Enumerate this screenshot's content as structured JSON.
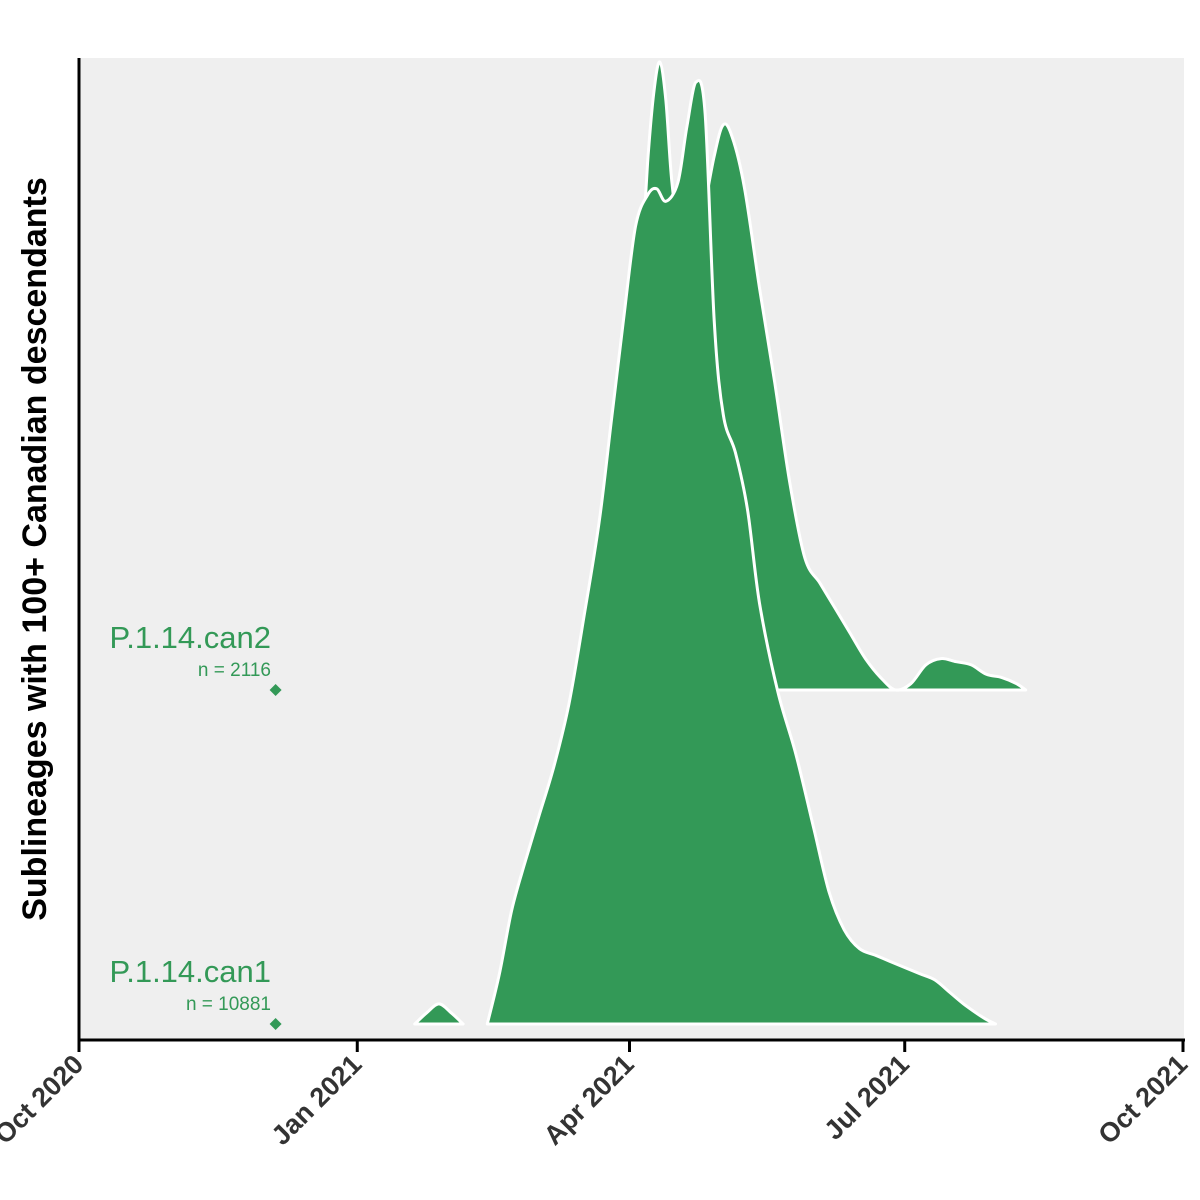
{
  "chart_data": {
    "type": "area",
    "subtype": "ridgeline",
    "title": "",
    "xlabel": "",
    "ylabel": "Sublineages with 100+ Canadian descendants",
    "x_axis": {
      "type": "date",
      "range": [
        "2020-10-01",
        "2021-10-01"
      ],
      "ticks": [
        {
          "date": "2020-10-01",
          "label": "Oct 2020"
        },
        {
          "date": "2021-01-01",
          "label": "Jan 2021"
        },
        {
          "date": "2021-04-01",
          "label": "Apr 2021"
        },
        {
          "date": "2021-07-01",
          "label": "Jul 2021"
        },
        {
          "date": "2021-10-01",
          "label": "Oct 2021"
        }
      ]
    },
    "grid": false,
    "background": "#efefef",
    "fill_color": "#339957",
    "outline_color": "#ffffff",
    "series": [
      {
        "name": "P.1.14.can2",
        "n_label": "n =  2116",
        "origin_date": "2020-12-05",
        "relative_density": [
          [
            "2021-03-13",
            0.0
          ],
          [
            "2021-03-18",
            0.02
          ],
          [
            "2021-03-23",
            0.07
          ],
          [
            "2021-03-28",
            0.18
          ],
          [
            "2021-04-01",
            0.34
          ],
          [
            "2021-04-03",
            0.5
          ],
          [
            "2021-04-05",
            0.68
          ],
          [
            "2021-04-07",
            0.84
          ],
          [
            "2021-04-09",
            0.95
          ],
          [
            "2021-04-11",
            1.0
          ],
          [
            "2021-04-13",
            0.94
          ],
          [
            "2021-04-15",
            0.81
          ],
          [
            "2021-04-18",
            0.7
          ],
          [
            "2021-04-21",
            0.68
          ],
          [
            "2021-04-25",
            0.75
          ],
          [
            "2021-04-29",
            0.85
          ],
          [
            "2021-05-02",
            0.9
          ],
          [
            "2021-05-05",
            0.88
          ],
          [
            "2021-05-09",
            0.8
          ],
          [
            "2021-05-14",
            0.64
          ],
          [
            "2021-05-19",
            0.49
          ],
          [
            "2021-05-24",
            0.33
          ],
          [
            "2021-05-29",
            0.21
          ],
          [
            "2021-06-03",
            0.17
          ],
          [
            "2021-06-08",
            0.13
          ],
          [
            "2021-06-13",
            0.09
          ],
          [
            "2021-06-18",
            0.05
          ],
          [
            "2021-06-23",
            0.02
          ],
          [
            "2021-06-28",
            0.0
          ],
          [
            "2021-07-03",
            0.01
          ],
          [
            "2021-07-08",
            0.04
          ],
          [
            "2021-07-13",
            0.05
          ],
          [
            "2021-07-18",
            0.045
          ],
          [
            "2021-07-23",
            0.04
          ],
          [
            "2021-07-28",
            0.025
          ],
          [
            "2021-08-02",
            0.02
          ],
          [
            "2021-08-07",
            0.01
          ],
          [
            "2021-08-10",
            0.0
          ]
        ]
      },
      {
        "name": "P.1.14.can1",
        "n_label": "n =  10881",
        "origin_date": "2020-12-05",
        "relative_density": [
          [
            "2021-01-20",
            0.0
          ],
          [
            "2021-01-24",
            0.018
          ],
          [
            "2021-01-28",
            0.032
          ],
          [
            "2021-02-01",
            0.018
          ],
          [
            "2021-02-05",
            0.0
          ],
          [
            "2021-02-13",
            0.0
          ],
          [
            "2021-02-17",
            0.08
          ],
          [
            "2021-02-21",
            0.18
          ],
          [
            "2021-02-25",
            0.25
          ],
          [
            "2021-03-02",
            0.33
          ],
          [
            "2021-03-07",
            0.41
          ],
          [
            "2021-03-12",
            0.51
          ],
          [
            "2021-03-17",
            0.65
          ],
          [
            "2021-03-22",
            0.8
          ],
          [
            "2021-03-26",
            0.96
          ],
          [
            "2021-03-30",
            1.12
          ],
          [
            "2021-04-03",
            1.27
          ],
          [
            "2021-04-07",
            1.32
          ],
          [
            "2021-04-10",
            1.33
          ],
          [
            "2021-04-13",
            1.31
          ],
          [
            "2021-04-17",
            1.34
          ],
          [
            "2021-04-20",
            1.43
          ],
          [
            "2021-04-23",
            1.5
          ],
          [
            "2021-04-26",
            1.45
          ],
          [
            "2021-04-29",
            1.12
          ],
          [
            "2021-05-02",
            0.97
          ],
          [
            "2021-05-06",
            0.91
          ],
          [
            "2021-05-10",
            0.82
          ],
          [
            "2021-05-14",
            0.67
          ],
          [
            "2021-05-20",
            0.53
          ],
          [
            "2021-05-26",
            0.43
          ],
          [
            "2021-06-01",
            0.31
          ],
          [
            "2021-06-06",
            0.21
          ],
          [
            "2021-06-11",
            0.15
          ],
          [
            "2021-06-16",
            0.12
          ],
          [
            "2021-06-21",
            0.11
          ],
          [
            "2021-06-26",
            0.1
          ],
          [
            "2021-07-01",
            0.09
          ],
          [
            "2021-07-06",
            0.08
          ],
          [
            "2021-07-11",
            0.07
          ],
          [
            "2021-07-16",
            0.05
          ],
          [
            "2021-07-21",
            0.03
          ],
          [
            "2021-07-27",
            0.01
          ],
          [
            "2021-07-31",
            0.0
          ]
        ]
      }
    ]
  }
}
